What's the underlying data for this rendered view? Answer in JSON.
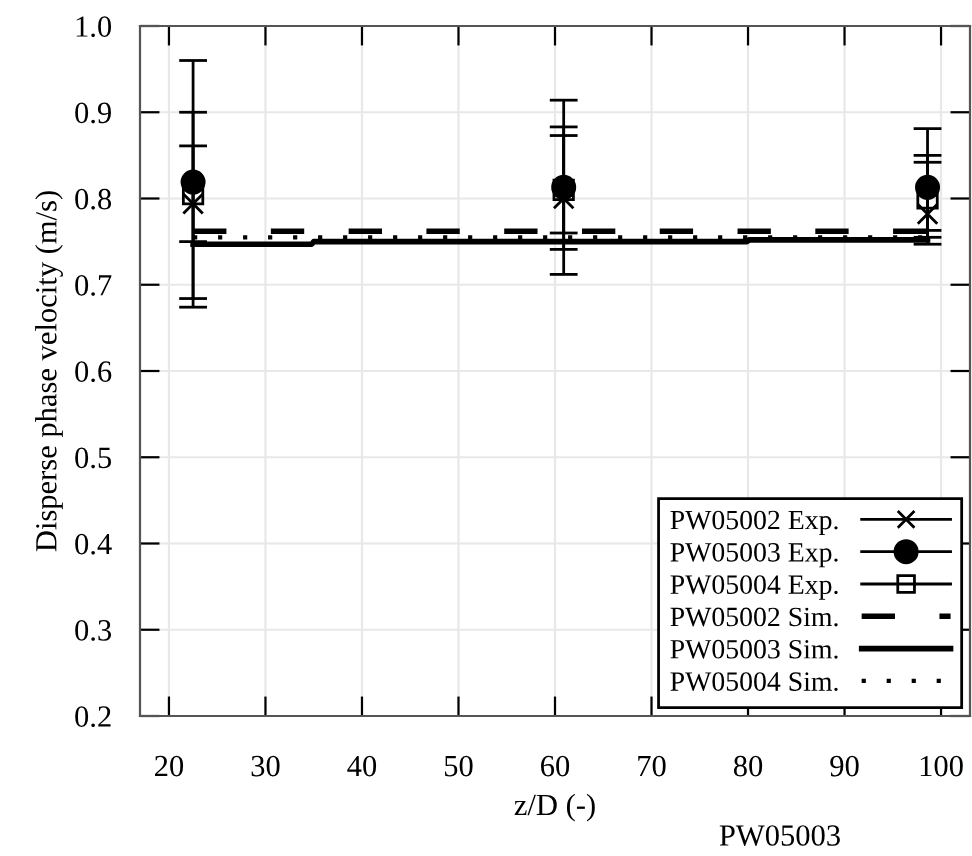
{
  "chart_data": {
    "type": "scatter",
    "xlabel": "z/D (-)",
    "ylabel": "Disperse phase velocity (m/s)",
    "xlim": [
      17,
      103
    ],
    "xticks": [
      20,
      30,
      40,
      50,
      60,
      70,
      80,
      90,
      100
    ],
    "ylim": [
      0.2,
      1.0
    ],
    "yticks": [
      {
        "value": 0.2,
        "label": "0.2"
      },
      {
        "value": 0.3,
        "label": "0.3"
      },
      {
        "value": 0.4,
        "label": "0.4"
      },
      {
        "value": 0.5,
        "label": "0.5"
      },
      {
        "value": 0.6,
        "label": "0.6"
      },
      {
        "value": 0.7,
        "label": "0.7"
      },
      {
        "value": 0.8,
        "label": "0.8"
      },
      {
        "value": 0.9,
        "label": "0.9"
      },
      {
        "value": 1.0,
        "label": "1.0"
      }
    ],
    "grid": true,
    "legend": "bottom right",
    "series": [
      {
        "name": "PW05002 Exp.",
        "marker": "cross",
        "color": "#000000",
        "x": [
          22.5,
          60.9,
          98.6
        ],
        "values": [
          0.794,
          0.8,
          0.782
        ],
        "errors": [
          [
            0.674,
            0.9
          ],
          [
            0.741,
            0.883
          ],
          [
            0.763,
            0.842
          ]
        ]
      },
      {
        "name": "PW05003 Exp.",
        "marker": "circle",
        "color": "#000000",
        "x": [
          22.5,
          60.9,
          98.6
        ],
        "values": [
          0.819,
          0.813,
          0.813
        ],
        "errors": [
          [
            0.684,
            0.96
          ],
          [
            0.712,
            0.914
          ],
          [
            0.747,
            0.881
          ]
        ]
      },
      {
        "name": "PW05004 Exp.",
        "marker": "square",
        "color": "#000000",
        "x": [
          22.5,
          60.9,
          98.6
        ],
        "values": [
          0.805,
          0.81,
          0.8
        ],
        "errors": [
          [
            0.75,
            0.861
          ],
          [
            0.76,
            0.873
          ],
          [
            0.755,
            0.85
          ]
        ]
      },
      {
        "name": "PW05002 Sim.",
        "type": "line",
        "line_style": "dashed",
        "color": "#000000",
        "x": [
          22.5,
          98.6
        ],
        "values": [
          0.762,
          0.762
        ]
      },
      {
        "name": "PW05003 Sim.",
        "type": "line",
        "line_style": "solid",
        "color": "#000000",
        "x": [
          22.5,
          34.8,
          35.0,
          79.9,
          80.1,
          98.6
        ],
        "values": [
          0.747,
          0.747,
          0.75,
          0.75,
          0.752,
          0.752
        ]
      },
      {
        "name": "PW05004 Sim.",
        "type": "line",
        "line_style": "dotted",
        "color": "#000000",
        "x": [
          22.5,
          98.6
        ],
        "values": [
          0.755,
          0.755
        ]
      }
    ],
    "annotations": [
      "PW05003"
    ]
  }
}
